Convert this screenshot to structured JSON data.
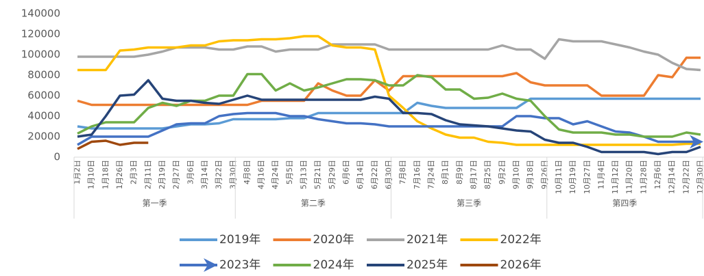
{
  "chart_data": {
    "type": "line",
    "categories": [
      "1月2日",
      "1月10日",
      "1月18日",
      "1月26日",
      "2月3日",
      "2月11日",
      "2月19日",
      "2月27日",
      "3月6日",
      "3月14日",
      "3月22日",
      "3月30日",
      "4月8日",
      "4月16日",
      "4月24日",
      "5月5日",
      "5月13日",
      "5月21日",
      "5月29日",
      "6月6日",
      "6月14日",
      "6月22日",
      "6月30日",
      "7月8日",
      "7月16日",
      "7月24日",
      "8月1日",
      "8月9日",
      "8月17日",
      "8月25日",
      "9月2日",
      "9月10日",
      "9月18日",
      "9月26日",
      "10月11日",
      "10月19日",
      "10月27日",
      "11月4日",
      "11月12日",
      "11月20日",
      "11月28日",
      "12月6日",
      "12月14日",
      "12月22日",
      "12月30日"
    ],
    "groups": [
      {
        "label": "第一季",
        "size": 12
      },
      {
        "label": "第二季",
        "size": 11
      },
      {
        "label": "第三季",
        "size": 11
      },
      {
        "label": "第四季",
        "size": 11
      }
    ],
    "ylim": [
      0,
      140000
    ],
    "yticks": [
      0,
      20000,
      40000,
      60000,
      80000,
      100000,
      120000,
      140000
    ],
    "series": [
      {
        "name": "2019年",
        "color": "#5b9bd5",
        "values": [
          30000,
          28000,
          28000,
          28000,
          28000,
          28000,
          28000,
          30000,
          32000,
          32000,
          33000,
          37000,
          37000,
          37000,
          37000,
          38000,
          38000,
          43000,
          43000,
          43000,
          43000,
          43000,
          43000,
          43000,
          53000,
          50000,
          48000,
          48000,
          48000,
          48000,
          48000,
          48000,
          57000,
          57000,
          57000,
          57000,
          57000,
          57000,
          57000,
          57000,
          57000,
          57000,
          57000,
          57000,
          57000
        ]
      },
      {
        "name": "2020年",
        "color": "#ed7d31",
        "values": [
          55000,
          51000,
          51000,
          51000,
          51000,
          51000,
          51000,
          51000,
          51000,
          51000,
          51000,
          51000,
          51000,
          55000,
          55000,
          55000,
          55000,
          72000,
          65000,
          60000,
          60000,
          75000,
          65000,
          79000,
          79000,
          79000,
          79000,
          79000,
          79000,
          79000,
          79000,
          82000,
          73000,
          70000,
          70000,
          70000,
          70000,
          60000,
          60000,
          60000,
          60000,
          80000,
          78000,
          97000,
          97000
        ]
      },
      {
        "name": "2021年",
        "color": "#a5a5a5",
        "values": [
          98000,
          98000,
          98000,
          98000,
          98000,
          100000,
          103000,
          107000,
          107000,
          107000,
          105000,
          105000,
          108000,
          108000,
          103000,
          105000,
          105000,
          105000,
          110000,
          110000,
          110000,
          110000,
          105000,
          105000,
          105000,
          105000,
          105000,
          105000,
          105000,
          105000,
          109000,
          105000,
          105000,
          96000,
          115000,
          113000,
          113000,
          113000,
          110000,
          107000,
          103000,
          100000,
          92000,
          86000,
          85000
        ]
      },
      {
        "name": "2022年",
        "color": "#ffc000",
        "values": [
          85000,
          85000,
          85000,
          104000,
          105000,
          107000,
          107000,
          107000,
          109000,
          109000,
          113000,
          114000,
          114000,
          115000,
          115000,
          116000,
          118000,
          118000,
          109000,
          107000,
          107000,
          105000,
          60000,
          48000,
          35000,
          28000,
          22000,
          19000,
          19000,
          15000,
          14000,
          12000,
          12000,
          12000,
          12000,
          12000,
          12000,
          12000,
          12000,
          12000,
          12000,
          12000,
          12000,
          13000,
          13000
        ]
      },
      {
        "name": "2023年",
        "color": "#4472c4",
        "marker": "arrow",
        "values": [
          12000,
          20000,
          20000,
          20000,
          20000,
          20000,
          26000,
          32000,
          33000,
          33000,
          40000,
          42000,
          43000,
          43000,
          43000,
          40000,
          40000,
          37000,
          35000,
          33000,
          33000,
          32000,
          30000,
          30000,
          30000,
          30000,
          30000,
          30000,
          30000,
          30000,
          30000,
          40000,
          40000,
          38000,
          38000,
          32000,
          35000,
          30000,
          25000,
          24000,
          20000,
          15000,
          15000,
          15000,
          15000
        ]
      },
      {
        "name": "2024年",
        "color": "#70ad47",
        "values": [
          23000,
          30000,
          34000,
          34000,
          34000,
          48000,
          53000,
          50000,
          55000,
          55000,
          60000,
          60000,
          81000,
          81000,
          65000,
          72000,
          65000,
          68000,
          72000,
          76000,
          76000,
          75000,
          70000,
          70000,
          80000,
          78000,
          66000,
          66000,
          57000,
          58000,
          62000,
          57000,
          55000,
          40000,
          27000,
          24000,
          24000,
          24000,
          22000,
          22000,
          20000,
          20000,
          20000,
          24000,
          22000
        ]
      },
      {
        "name": "2025年",
        "color": "#264478",
        "values": [
          20000,
          22000,
          40000,
          60000,
          61000,
          75000,
          57000,
          55000,
          55000,
          53000,
          52000,
          56000,
          60000,
          56000,
          56000,
          56000,
          56000,
          56000,
          56000,
          56000,
          56000,
          59000,
          57000,
          43000,
          43000,
          42000,
          36000,
          32000,
          31000,
          30000,
          28000,
          26000,
          25000,
          17000,
          14000,
          14000,
          10000,
          5000,
          5000,
          5000,
          5000,
          3000,
          5000,
          5000,
          10000
        ]
      },
      {
        "name": "2026年",
        "color": "#9e480e",
        "values": [
          8000,
          15000,
          16000,
          12000,
          14000,
          14000,
          null,
          null,
          null,
          null,
          null,
          null,
          null,
          null,
          null,
          null,
          null,
          null,
          null,
          null,
          null,
          null,
          null,
          null,
          null,
          null,
          null,
          null,
          null,
          null,
          null,
          null,
          null,
          null,
          null,
          null,
          null,
          null,
          null,
          null,
          null,
          null,
          null,
          null,
          null
        ]
      }
    ]
  }
}
